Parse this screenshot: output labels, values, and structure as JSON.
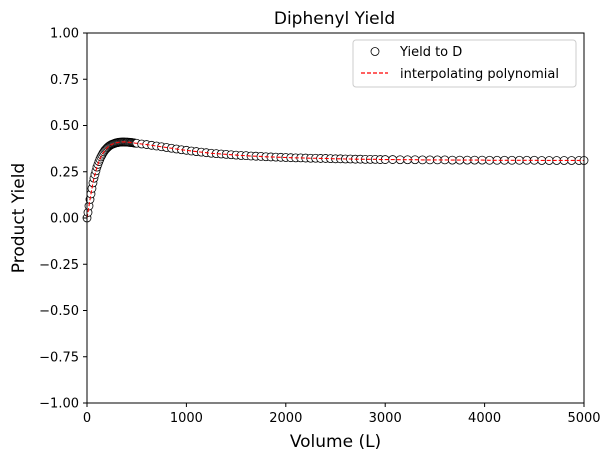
{
  "chart_data": {
    "type": "scatter",
    "title": "Diphenyl Yield",
    "xlabel": "Volume (L)",
    "ylabel": "Product Yield",
    "xlim": [
      0,
      5000
    ],
    "ylim": [
      -1.0,
      1.0
    ],
    "xticks": [
      "0",
      "1000",
      "2000",
      "3000",
      "4000",
      "5000"
    ],
    "yticks": [
      "−1.00",
      "−0.75",
      "−0.50",
      "−0.25",
      "0.00",
      "0.25",
      "0.50",
      "0.75",
      "1.00"
    ],
    "grid": false,
    "legend_position": "top-right",
    "series": [
      {
        "name": "Yield to D",
        "kind": "markers",
        "marker": "open-circle",
        "color": "#000000",
        "x": [
          0,
          10,
          20,
          30,
          40,
          50,
          60,
          70,
          80,
          90,
          100,
          110,
          120,
          130,
          140,
          150,
          160,
          170,
          180,
          190,
          200,
          210,
          220,
          230,
          240,
          250,
          260,
          270,
          280,
          290,
          300,
          310,
          320,
          330,
          340,
          350,
          360,
          370,
          380,
          390,
          400,
          410,
          420,
          430,
          440,
          450,
          460,
          470,
          480,
          490,
          500,
          550,
          600,
          650,
          700,
          750,
          800,
          850,
          900,
          950,
          1000,
          1050,
          1100,
          1150,
          1200,
          1250,
          1300,
          1350,
          1400,
          1450,
          1500,
          1550,
          1600,
          1650,
          1700,
          1750,
          1800,
          1850,
          1900,
          1950,
          2000,
          2050,
          2100,
          2150,
          2200,
          2250,
          2300,
          2350,
          2400,
          2450,
          2500,
          2550,
          2600,
          2650,
          2700,
          2750,
          2800,
          2850,
          2900,
          2950,
          3000,
          3075,
          3150,
          3225,
          3300,
          3375,
          3450,
          3525,
          3600,
          3675,
          3750,
          3825,
          3900,
          3975,
          4050,
          4125,
          4200,
          4275,
          4350,
          4425,
          4500,
          4575,
          4650,
          4725,
          4800,
          4875,
          4950,
          5000
        ],
        "y": [
          0.0,
          0.03,
          0.065,
          0.1,
          0.13,
          0.16,
          0.19,
          0.215,
          0.235,
          0.255,
          0.275,
          0.29,
          0.305,
          0.318,
          0.33,
          0.34,
          0.35,
          0.358,
          0.366,
          0.372,
          0.378,
          0.383,
          0.388,
          0.392,
          0.395,
          0.398,
          0.4,
          0.402,
          0.404,
          0.406,
          0.407,
          0.408,
          0.409,
          0.41,
          0.41,
          0.411,
          0.411,
          0.411,
          0.411,
          0.41,
          0.41,
          0.41,
          0.409,
          0.409,
          0.408,
          0.408,
          0.407,
          0.406,
          0.405,
          0.404,
          0.404,
          0.4,
          0.397,
          0.393,
          0.389,
          0.385,
          0.381,
          0.377,
          0.373,
          0.369,
          0.366,
          0.362,
          0.359,
          0.356,
          0.353,
          0.35,
          0.348,
          0.346,
          0.344,
          0.342,
          0.34,
          0.338,
          0.337,
          0.335,
          0.334,
          0.333,
          0.331,
          0.33,
          0.329,
          0.328,
          0.327,
          0.326,
          0.325,
          0.325,
          0.324,
          0.323,
          0.323,
          0.322,
          0.322,
          0.321,
          0.32,
          0.32,
          0.319,
          0.319,
          0.318,
          0.318,
          0.317,
          0.317,
          0.317,
          0.316,
          0.316,
          0.316,
          0.315,
          0.315,
          0.315,
          0.314,
          0.314,
          0.314,
          0.314,
          0.313,
          0.313,
          0.313,
          0.313,
          0.313,
          0.312,
          0.312,
          0.312,
          0.312,
          0.312,
          0.312,
          0.312,
          0.311,
          0.311,
          0.311,
          0.311,
          0.311,
          0.311,
          0.311
        ]
      },
      {
        "name": "interpolating polynomial",
        "kind": "line",
        "linestyle": "dashed",
        "color": "#ff0000",
        "x": [
          0,
          10,
          20,
          30,
          40,
          50,
          60,
          70,
          80,
          90,
          100,
          110,
          120,
          130,
          140,
          150,
          160,
          170,
          180,
          190,
          200,
          210,
          220,
          230,
          240,
          250,
          260,
          270,
          280,
          290,
          300,
          310,
          320,
          330,
          340,
          350,
          360,
          370,
          380,
          390,
          400,
          410,
          420,
          430,
          440,
          450,
          460,
          470,
          480,
          490,
          500,
          550,
          600,
          650,
          700,
          750,
          800,
          850,
          900,
          950,
          1000,
          1050,
          1100,
          1150,
          1200,
          1250,
          1300,
          1350,
          1400,
          1450,
          1500,
          1550,
          1600,
          1650,
          1700,
          1750,
          1800,
          1850,
          1900,
          1950,
          2000,
          2050,
          2100,
          2150,
          2200,
          2250,
          2300,
          2350,
          2400,
          2450,
          2500,
          2550,
          2600,
          2650,
          2700,
          2750,
          2800,
          2850,
          2900,
          2950,
          3000,
          3075,
          3150,
          3225,
          3300,
          3375,
          3450,
          3525,
          3600,
          3675,
          3750,
          3825,
          3900,
          3975,
          4050,
          4125,
          4200,
          4275,
          4350,
          4425,
          4500,
          4575,
          4650,
          4725,
          4800,
          4875,
          4950,
          5000
        ],
        "y": [
          0.0,
          0.03,
          0.065,
          0.1,
          0.13,
          0.16,
          0.19,
          0.215,
          0.235,
          0.255,
          0.275,
          0.29,
          0.305,
          0.318,
          0.33,
          0.34,
          0.35,
          0.358,
          0.366,
          0.372,
          0.378,
          0.383,
          0.388,
          0.392,
          0.395,
          0.398,
          0.4,
          0.402,
          0.404,
          0.406,
          0.407,
          0.408,
          0.409,
          0.41,
          0.41,
          0.411,
          0.411,
          0.411,
          0.411,
          0.41,
          0.41,
          0.41,
          0.409,
          0.409,
          0.408,
          0.408,
          0.407,
          0.406,
          0.405,
          0.404,
          0.404,
          0.4,
          0.397,
          0.393,
          0.389,
          0.385,
          0.381,
          0.377,
          0.373,
          0.369,
          0.366,
          0.362,
          0.359,
          0.356,
          0.353,
          0.35,
          0.348,
          0.346,
          0.344,
          0.342,
          0.34,
          0.338,
          0.337,
          0.335,
          0.334,
          0.333,
          0.331,
          0.33,
          0.329,
          0.328,
          0.327,
          0.326,
          0.325,
          0.325,
          0.324,
          0.323,
          0.323,
          0.322,
          0.322,
          0.321,
          0.32,
          0.32,
          0.319,
          0.319,
          0.318,
          0.318,
          0.317,
          0.317,
          0.317,
          0.316,
          0.316,
          0.316,
          0.315,
          0.315,
          0.315,
          0.314,
          0.314,
          0.314,
          0.314,
          0.313,
          0.313,
          0.313,
          0.313,
          0.313,
          0.312,
          0.312,
          0.312,
          0.312,
          0.312,
          0.312,
          0.312,
          0.311,
          0.311,
          0.311,
          0.311,
          0.311,
          0.311,
          0.311
        ]
      }
    ]
  }
}
